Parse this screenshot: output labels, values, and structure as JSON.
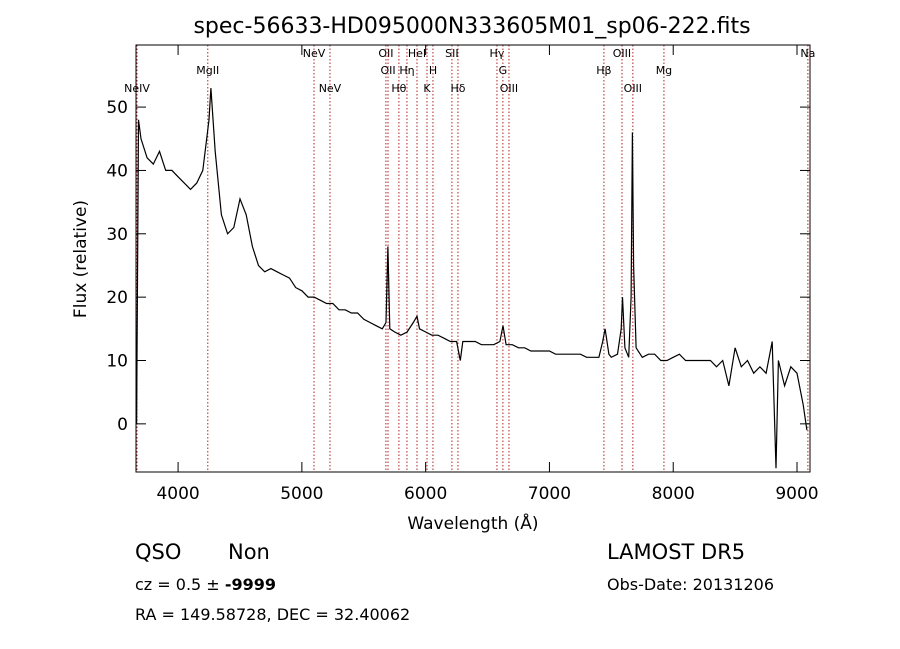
{
  "chart_data": {
    "type": "line",
    "title": "spec-56633-HD095000N333605M01_sp06-222.fits",
    "xlabel": "Wavelength (Å)",
    "ylabel": "Flux (relative)",
    "color": "#000000",
    "line_color": "#b22222",
    "xlim": [
      3660,
      9105
    ],
    "ylim": [
      -7.6,
      59.8
    ],
    "xticks": [
      4000,
      5000,
      6000,
      7000,
      8000,
      9000
    ],
    "yticks": [
      0,
      10,
      20,
      30,
      40,
      50
    ],
    "x": [
      3665,
      3680,
      3700,
      3750,
      3800,
      3850,
      3900,
      3950,
      4000,
      4050,
      4100,
      4150,
      4200,
      4250,
      4265,
      4300,
      4350,
      4400,
      4450,
      4500,
      4550,
      4600,
      4650,
      4700,
      4750,
      4800,
      4850,
      4900,
      4950,
      5000,
      5050,
      5100,
      5150,
      5200,
      5250,
      5300,
      5350,
      5400,
      5450,
      5500,
      5550,
      5600,
      5650,
      5680,
      5695,
      5710,
      5750,
      5800,
      5850,
      5900,
      5930,
      5950,
      6000,
      6050,
      6100,
      6150,
      6200,
      6250,
      6280,
      6300,
      6350,
      6400,
      6450,
      6500,
      6550,
      6600,
      6625,
      6650,
      6700,
      6750,
      6800,
      6850,
      6900,
      6950,
      7000,
      7050,
      7100,
      7150,
      7200,
      7250,
      7300,
      7350,
      7400,
      7430,
      7450,
      7480,
      7500,
      7550,
      7580,
      7590,
      7610,
      7640,
      7660,
      7670,
      7680,
      7700,
      7750,
      7800,
      7850,
      7900,
      7950,
      8000,
      8050,
      8100,
      8150,
      8200,
      8250,
      8300,
      8350,
      8400,
      8450,
      8500,
      8550,
      8600,
      8650,
      8700,
      8750,
      8800,
      8830,
      8850,
      8900,
      8950,
      9000,
      9050,
      9080
    ],
    "values": [
      0,
      48,
      45,
      42,
      41,
      43,
      40,
      40,
      39,
      38,
      37,
      38,
      40,
      48,
      53,
      43,
      33,
      30,
      31,
      35.5,
      33,
      28,
      25,
      24,
      24.5,
      24,
      23.5,
      23,
      21.5,
      21,
      20,
      20,
      19.5,
      19,
      19,
      18,
      18,
      17.5,
      17.5,
      16.5,
      16,
      15.5,
      15,
      16,
      28,
      15,
      14.5,
      14,
      14.5,
      16,
      17,
      15,
      14.5,
      14,
      14,
      13.5,
      13,
      13,
      10,
      13,
      13,
      13,
      12.5,
      12.5,
      12.5,
      13,
      15.5,
      12.5,
      12.5,
      12,
      12,
      11.5,
      11.5,
      11.5,
      11.5,
      11,
      11,
      11,
      11,
      11,
      10.5,
      10.5,
      10.5,
      13,
      15,
      11,
      10.5,
      11,
      15,
      20,
      12,
      10.5,
      20,
      46,
      25,
      12,
      10.5,
      11,
      11,
      10,
      10,
      10.5,
      11,
      10,
      10,
      10,
      10,
      10,
      9,
      10,
      6,
      12,
      9,
      10,
      8,
      9,
      8,
      13,
      -7,
      10,
      6,
      9,
      8,
      3,
      -1
    ],
    "lines": [
      {
        "label": "NeIV",
        "wavelength": 3668
      },
      {
        "label": "MgII",
        "wavelength": 4240
      },
      {
        "label": "NeV",
        "wavelength": 5098
      },
      {
        "label": "NeV",
        "wavelength": 5227
      },
      {
        "label": "OII",
        "wavelength": 5679
      },
      {
        "label": "OII",
        "wavelength": 5696
      },
      {
        "label": "Hθ",
        "wavelength": 5784
      },
      {
        "label": "Hη",
        "wavelength": 5849
      },
      {
        "label": "HeI",
        "wavelength": 5930
      },
      {
        "label": "K",
        "wavelength": 6011
      },
      {
        "label": "H",
        "wavelength": 6059
      },
      {
        "label": "SII",
        "wavelength": 6212
      },
      {
        "label": "Hδ",
        "wavelength": 6261
      },
      {
        "label": "Hγ",
        "wavelength": 6576
      },
      {
        "label": "G",
        "wavelength": 6624
      },
      {
        "label": "OIII",
        "wavelength": 6673
      },
      {
        "label": "Hβ",
        "wavelength": 7440
      },
      {
        "label": "OIII",
        "wavelength": 7586
      },
      {
        "label": "OIII",
        "wavelength": 7674
      },
      {
        "label": "Mg",
        "wavelength": 7925
      },
      {
        "label": "Na",
        "wavelength": 9088
      }
    ]
  },
  "info": {
    "class": "QSO",
    "subclass": "Non",
    "cz": "cz = 0.5 ±",
    "cz_error": "-9999",
    "coords": "RA = 149.58728, DEC =  32.40062",
    "survey": "LAMOST DR5",
    "obs_date": "Obs-Date: 20131206"
  }
}
